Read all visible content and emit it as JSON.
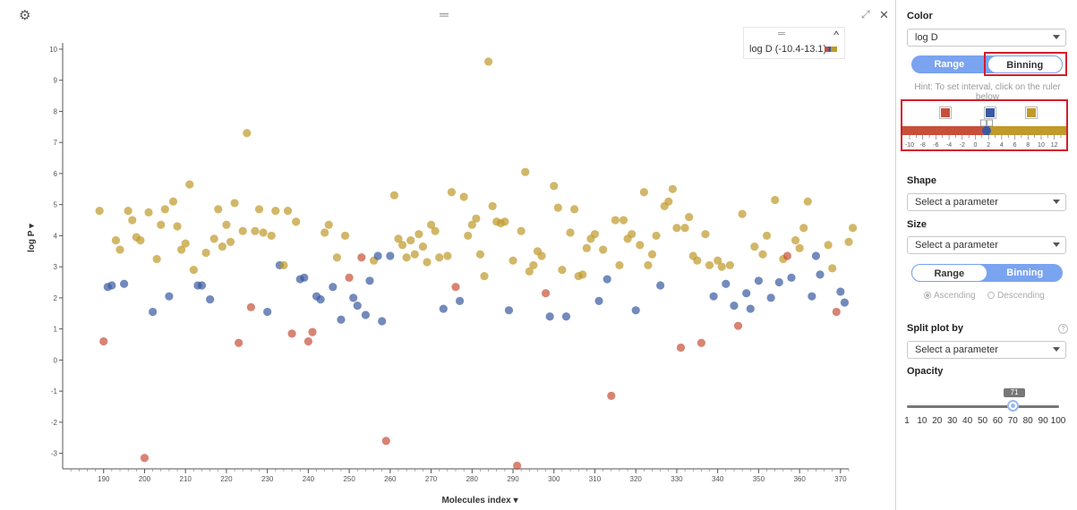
{
  "plot": {
    "settings_icon": "gear-icon",
    "drag_handle": "═",
    "expand_icon": "⤢",
    "close_icon": "✕",
    "x_axis_label": "Molecules index ▾",
    "y_axis_label": "log P ▾",
    "legend": {
      "handle": "═",
      "caret": "^",
      "label": "log D (-10.4-13.1)"
    }
  },
  "chart_data": {
    "type": "scatter",
    "title": "",
    "xlabel": "Molecules index",
    "ylabel": "log P",
    "xlim": [
      180,
      372
    ],
    "ylim": [
      -3.5,
      10.2
    ],
    "x_ticks": [
      190,
      200,
      210,
      220,
      230,
      240,
      250,
      260,
      270,
      280,
      290,
      300,
      310,
      320,
      330,
      340,
      350,
      360,
      370
    ],
    "y_ticks": [
      -3,
      -2,
      -1,
      0,
      1,
      2,
      3,
      4,
      5,
      6,
      7,
      8,
      9,
      10
    ],
    "colors": {
      "low": "#c8503a",
      "mid": "#3a5aa0",
      "high": "#c09a2a"
    },
    "points": [
      {
        "x": 189,
        "y": 4.8,
        "c": "high"
      },
      {
        "x": 190,
        "y": 0.6,
        "c": "low"
      },
      {
        "x": 191,
        "y": 2.35,
        "c": "mid"
      },
      {
        "x": 192,
        "y": 2.4,
        "c": "mid"
      },
      {
        "x": 193,
        "y": 3.85,
        "c": "high"
      },
      {
        "x": 194,
        "y": 3.55,
        "c": "high"
      },
      {
        "x": 195,
        "y": 2.45,
        "c": "mid"
      },
      {
        "x": 196,
        "y": 4.8,
        "c": "high"
      },
      {
        "x": 197,
        "y": 4.5,
        "c": "high"
      },
      {
        "x": 198,
        "y": 3.95,
        "c": "high"
      },
      {
        "x": 199,
        "y": 3.85,
        "c": "high"
      },
      {
        "x": 200,
        "y": -3.15,
        "c": "low"
      },
      {
        "x": 201,
        "y": 4.75,
        "c": "high"
      },
      {
        "x": 202,
        "y": 1.55,
        "c": "mid"
      },
      {
        "x": 203,
        "y": 3.25,
        "c": "high"
      },
      {
        "x": 204,
        "y": 4.35,
        "c": "high"
      },
      {
        "x": 205,
        "y": 4.85,
        "c": "high"
      },
      {
        "x": 206,
        "y": 2.05,
        "c": "mid"
      },
      {
        "x": 207,
        "y": 5.1,
        "c": "high"
      },
      {
        "x": 208,
        "y": 4.3,
        "c": "high"
      },
      {
        "x": 209,
        "y": 3.55,
        "c": "high"
      },
      {
        "x": 210,
        "y": 3.75,
        "c": "high"
      },
      {
        "x": 211,
        "y": 5.65,
        "c": "high"
      },
      {
        "x": 212,
        "y": 2.9,
        "c": "high"
      },
      {
        "x": 213,
        "y": 2.4,
        "c": "mid"
      },
      {
        "x": 214,
        "y": 2.4,
        "c": "mid"
      },
      {
        "x": 215,
        "y": 3.45,
        "c": "high"
      },
      {
        "x": 216,
        "y": 1.95,
        "c": "mid"
      },
      {
        "x": 217,
        "y": 3.9,
        "c": "high"
      },
      {
        "x": 218,
        "y": 4.85,
        "c": "high"
      },
      {
        "x": 219,
        "y": 3.65,
        "c": "high"
      },
      {
        "x": 220,
        "y": 4.35,
        "c": "high"
      },
      {
        "x": 221,
        "y": 3.8,
        "c": "high"
      },
      {
        "x": 222,
        "y": 5.05,
        "c": "high"
      },
      {
        "x": 223,
        "y": 0.55,
        "c": "low"
      },
      {
        "x": 224,
        "y": 4.15,
        "c": "high"
      },
      {
        "x": 225,
        "y": 7.3,
        "c": "high"
      },
      {
        "x": 226,
        "y": 1.7,
        "c": "low"
      },
      {
        "x": 227,
        "y": 4.15,
        "c": "high"
      },
      {
        "x": 228,
        "y": 4.85,
        "c": "high"
      },
      {
        "x": 229,
        "y": 4.1,
        "c": "high"
      },
      {
        "x": 230,
        "y": 1.55,
        "c": "mid"
      },
      {
        "x": 231,
        "y": 4.0,
        "c": "high"
      },
      {
        "x": 232,
        "y": 4.8,
        "c": "high"
      },
      {
        "x": 233,
        "y": 3.05,
        "c": "mid"
      },
      {
        "x": 234,
        "y": 3.05,
        "c": "high"
      },
      {
        "x": 235,
        "y": 4.8,
        "c": "high"
      },
      {
        "x": 236,
        "y": 0.85,
        "c": "low"
      },
      {
        "x": 237,
        "y": 4.45,
        "c": "high"
      },
      {
        "x": 238,
        "y": 2.6,
        "c": "mid"
      },
      {
        "x": 239,
        "y": 2.65,
        "c": "mid"
      },
      {
        "x": 240,
        "y": 0.6,
        "c": "low"
      },
      {
        "x": 241,
        "y": 0.9,
        "c": "low"
      },
      {
        "x": 242,
        "y": 2.05,
        "c": "mid"
      },
      {
        "x": 243,
        "y": 1.95,
        "c": "mid"
      },
      {
        "x": 244,
        "y": 4.1,
        "c": "high"
      },
      {
        "x": 245,
        "y": 4.35,
        "c": "high"
      },
      {
        "x": 246,
        "y": 2.35,
        "c": "mid"
      },
      {
        "x": 247,
        "y": 3.3,
        "c": "high"
      },
      {
        "x": 248,
        "y": 1.3,
        "c": "mid"
      },
      {
        "x": 249,
        "y": 4.0,
        "c": "high"
      },
      {
        "x": 250,
        "y": 2.65,
        "c": "low"
      },
      {
        "x": 251,
        "y": 2.0,
        "c": "mid"
      },
      {
        "x": 252,
        "y": 1.75,
        "c": "mid"
      },
      {
        "x": 253,
        "y": 3.3,
        "c": "low"
      },
      {
        "x": 254,
        "y": 1.45,
        "c": "mid"
      },
      {
        "x": 255,
        "y": 2.55,
        "c": "mid"
      },
      {
        "x": 256,
        "y": 3.2,
        "c": "high"
      },
      {
        "x": 257,
        "y": 3.35,
        "c": "mid"
      },
      {
        "x": 258,
        "y": 1.25,
        "c": "mid"
      },
      {
        "x": 259,
        "y": -2.6,
        "c": "low"
      },
      {
        "x": 260,
        "y": 3.35,
        "c": "mid"
      },
      {
        "x": 261,
        "y": 5.3,
        "c": "high"
      },
      {
        "x": 262,
        "y": 3.9,
        "c": "high"
      },
      {
        "x": 263,
        "y": 3.7,
        "c": "high"
      },
      {
        "x": 264,
        "y": 3.3,
        "c": "high"
      },
      {
        "x": 265,
        "y": 3.85,
        "c": "high"
      },
      {
        "x": 266,
        "y": 3.4,
        "c": "high"
      },
      {
        "x": 267,
        "y": 4.05,
        "c": "high"
      },
      {
        "x": 268,
        "y": 3.65,
        "c": "high"
      },
      {
        "x": 269,
        "y": 3.15,
        "c": "high"
      },
      {
        "x": 270,
        "y": 4.35,
        "c": "high"
      },
      {
        "x": 271,
        "y": 4.15,
        "c": "high"
      },
      {
        "x": 272,
        "y": 3.3,
        "c": "high"
      },
      {
        "x": 273,
        "y": 1.65,
        "c": "mid"
      },
      {
        "x": 274,
        "y": 3.35,
        "c": "high"
      },
      {
        "x": 275,
        "y": 5.4,
        "c": "high"
      },
      {
        "x": 276,
        "y": 2.35,
        "c": "low"
      },
      {
        "x": 277,
        "y": 1.9,
        "c": "mid"
      },
      {
        "x": 278,
        "y": 5.25,
        "c": "high"
      },
      {
        "x": 279,
        "y": 4.0,
        "c": "high"
      },
      {
        "x": 280,
        "y": 4.35,
        "c": "high"
      },
      {
        "x": 281,
        "y": 4.55,
        "c": "high"
      },
      {
        "x": 282,
        "y": 3.4,
        "c": "high"
      },
      {
        "x": 283,
        "y": 2.7,
        "c": "high"
      },
      {
        "x": 284,
        "y": 9.6,
        "c": "high"
      },
      {
        "x": 285,
        "y": 4.95,
        "c": "high"
      },
      {
        "x": 286,
        "y": 4.45,
        "c": "high"
      },
      {
        "x": 287,
        "y": 4.4,
        "c": "high"
      },
      {
        "x": 288,
        "y": 4.45,
        "c": "high"
      },
      {
        "x": 289,
        "y": 1.6,
        "c": "mid"
      },
      {
        "x": 290,
        "y": 3.2,
        "c": "high"
      },
      {
        "x": 291,
        "y": -3.4,
        "c": "low"
      },
      {
        "x": 292,
        "y": 4.15,
        "c": "high"
      },
      {
        "x": 293,
        "y": 6.05,
        "c": "high"
      },
      {
        "x": 294,
        "y": 2.85,
        "c": "high"
      },
      {
        "x": 295,
        "y": 3.05,
        "c": "high"
      },
      {
        "x": 296,
        "y": 3.5,
        "c": "high"
      },
      {
        "x": 297,
        "y": 3.35,
        "c": "high"
      },
      {
        "x": 298,
        "y": 2.15,
        "c": "low"
      },
      {
        "x": 299,
        "y": 1.4,
        "c": "mid"
      },
      {
        "x": 300,
        "y": 5.6,
        "c": "high"
      },
      {
        "x": 301,
        "y": 4.9,
        "c": "high"
      },
      {
        "x": 302,
        "y": 2.9,
        "c": "high"
      },
      {
        "x": 303,
        "y": 1.4,
        "c": "mid"
      },
      {
        "x": 304,
        "y": 4.1,
        "c": "high"
      },
      {
        "x": 305,
        "y": 4.85,
        "c": "high"
      },
      {
        "x": 306,
        "y": 2.7,
        "c": "high"
      },
      {
        "x": 307,
        "y": 2.75,
        "c": "high"
      },
      {
        "x": 308,
        "y": 3.6,
        "c": "high"
      },
      {
        "x": 309,
        "y": 3.9,
        "c": "high"
      },
      {
        "x": 310,
        "y": 4.05,
        "c": "high"
      },
      {
        "x": 311,
        "y": 1.9,
        "c": "mid"
      },
      {
        "x": 312,
        "y": 3.55,
        "c": "high"
      },
      {
        "x": 313,
        "y": 2.6,
        "c": "mid"
      },
      {
        "x": 314,
        "y": -1.15,
        "c": "low"
      },
      {
        "x": 315,
        "y": 4.5,
        "c": "high"
      },
      {
        "x": 316,
        "y": 3.05,
        "c": "high"
      },
      {
        "x": 317,
        "y": 4.5,
        "c": "high"
      },
      {
        "x": 318,
        "y": 3.9,
        "c": "high"
      },
      {
        "x": 319,
        "y": 4.05,
        "c": "high"
      },
      {
        "x": 320,
        "y": 1.6,
        "c": "mid"
      },
      {
        "x": 321,
        "y": 3.7,
        "c": "high"
      },
      {
        "x": 322,
        "y": 5.4,
        "c": "high"
      },
      {
        "x": 323,
        "y": 3.05,
        "c": "high"
      },
      {
        "x": 324,
        "y": 3.4,
        "c": "high"
      },
      {
        "x": 325,
        "y": 4.0,
        "c": "high"
      },
      {
        "x": 326,
        "y": 2.4,
        "c": "mid"
      },
      {
        "x": 327,
        "y": 4.95,
        "c": "high"
      },
      {
        "x": 328,
        "y": 5.1,
        "c": "high"
      },
      {
        "x": 329,
        "y": 5.5,
        "c": "high"
      },
      {
        "x": 330,
        "y": 4.25,
        "c": "high"
      },
      {
        "x": 331,
        "y": 0.4,
        "c": "low"
      },
      {
        "x": 332,
        "y": 4.25,
        "c": "high"
      },
      {
        "x": 333,
        "y": 4.6,
        "c": "high"
      },
      {
        "x": 334,
        "y": 3.35,
        "c": "high"
      },
      {
        "x": 335,
        "y": 3.2,
        "c": "high"
      },
      {
        "x": 336,
        "y": 0.55,
        "c": "low"
      },
      {
        "x": 337,
        "y": 4.05,
        "c": "high"
      },
      {
        "x": 338,
        "y": 3.05,
        "c": "high"
      },
      {
        "x": 339,
        "y": 2.05,
        "c": "mid"
      },
      {
        "x": 340,
        "y": 3.2,
        "c": "high"
      },
      {
        "x": 341,
        "y": 3.0,
        "c": "high"
      },
      {
        "x": 342,
        "y": 2.45,
        "c": "mid"
      },
      {
        "x": 343,
        "y": 3.05,
        "c": "high"
      },
      {
        "x": 344,
        "y": 1.75,
        "c": "mid"
      },
      {
        "x": 345,
        "y": 1.1,
        "c": "low"
      },
      {
        "x": 346,
        "y": 4.7,
        "c": "high"
      },
      {
        "x": 347,
        "y": 2.15,
        "c": "mid"
      },
      {
        "x": 348,
        "y": 1.65,
        "c": "mid"
      },
      {
        "x": 349,
        "y": 3.65,
        "c": "high"
      },
      {
        "x": 350,
        "y": 2.55,
        "c": "mid"
      },
      {
        "x": 351,
        "y": 3.4,
        "c": "high"
      },
      {
        "x": 352,
        "y": 4.0,
        "c": "high"
      },
      {
        "x": 353,
        "y": 2.0,
        "c": "mid"
      },
      {
        "x": 354,
        "y": 5.15,
        "c": "high"
      },
      {
        "x": 355,
        "y": 2.5,
        "c": "mid"
      },
      {
        "x": 356,
        "y": 3.25,
        "c": "high"
      },
      {
        "x": 357,
        "y": 3.35,
        "c": "low"
      },
      {
        "x": 358,
        "y": 2.65,
        "c": "mid"
      },
      {
        "x": 359,
        "y": 3.85,
        "c": "high"
      },
      {
        "x": 360,
        "y": 3.6,
        "c": "high"
      },
      {
        "x": 361,
        "y": 4.25,
        "c": "high"
      },
      {
        "x": 362,
        "y": 5.1,
        "c": "high"
      },
      {
        "x": 363,
        "y": 2.05,
        "c": "mid"
      },
      {
        "x": 364,
        "y": 3.35,
        "c": "mid"
      },
      {
        "x": 365,
        "y": 2.75,
        "c": "mid"
      },
      {
        "x": 367,
        "y": 3.7,
        "c": "high"
      },
      {
        "x": 368,
        "y": 2.95,
        "c": "high"
      },
      {
        "x": 369,
        "y": 1.55,
        "c": "low"
      },
      {
        "x": 370,
        "y": 2.2,
        "c": "mid"
      },
      {
        "x": 371,
        "y": 1.85,
        "c": "mid"
      },
      {
        "x": 372,
        "y": 3.8,
        "c": "high"
      },
      {
        "x": 373,
        "y": 4.25,
        "c": "high"
      }
    ]
  },
  "panel": {
    "color": {
      "title": "Color",
      "select_value": "log D",
      "range_label": "Range",
      "binning_label": "Binning",
      "hint": "Hint: To set interval, click on the ruler below",
      "ruler": {
        "min": -10,
        "max": 13,
        "ticks": [
          -10,
          -8,
          -6,
          -4,
          -2,
          0,
          2,
          4,
          6,
          8,
          10,
          12
        ],
        "bin_edges": [
          1.2,
          2.2
        ],
        "bin_colors": [
          "#c8503a",
          "#3a5aa0",
          "#c09a2a"
        ]
      }
    },
    "shape": {
      "title": "Shape",
      "placeholder": "Select a parameter"
    },
    "size": {
      "title": "Size",
      "placeholder": "Select a parameter",
      "range_label": "Range",
      "binning_label": "Binning",
      "ascending_label": "Ascending",
      "descending_label": "Descending"
    },
    "split": {
      "title": "Split plot by",
      "help": "?",
      "placeholder": "Select a parameter"
    },
    "opacity": {
      "title": "Opacity",
      "value": 71,
      "ticks": [
        "1",
        "10",
        "20",
        "30",
        "40",
        "50",
        "60",
        "70",
        "80",
        "90",
        "100"
      ]
    }
  }
}
